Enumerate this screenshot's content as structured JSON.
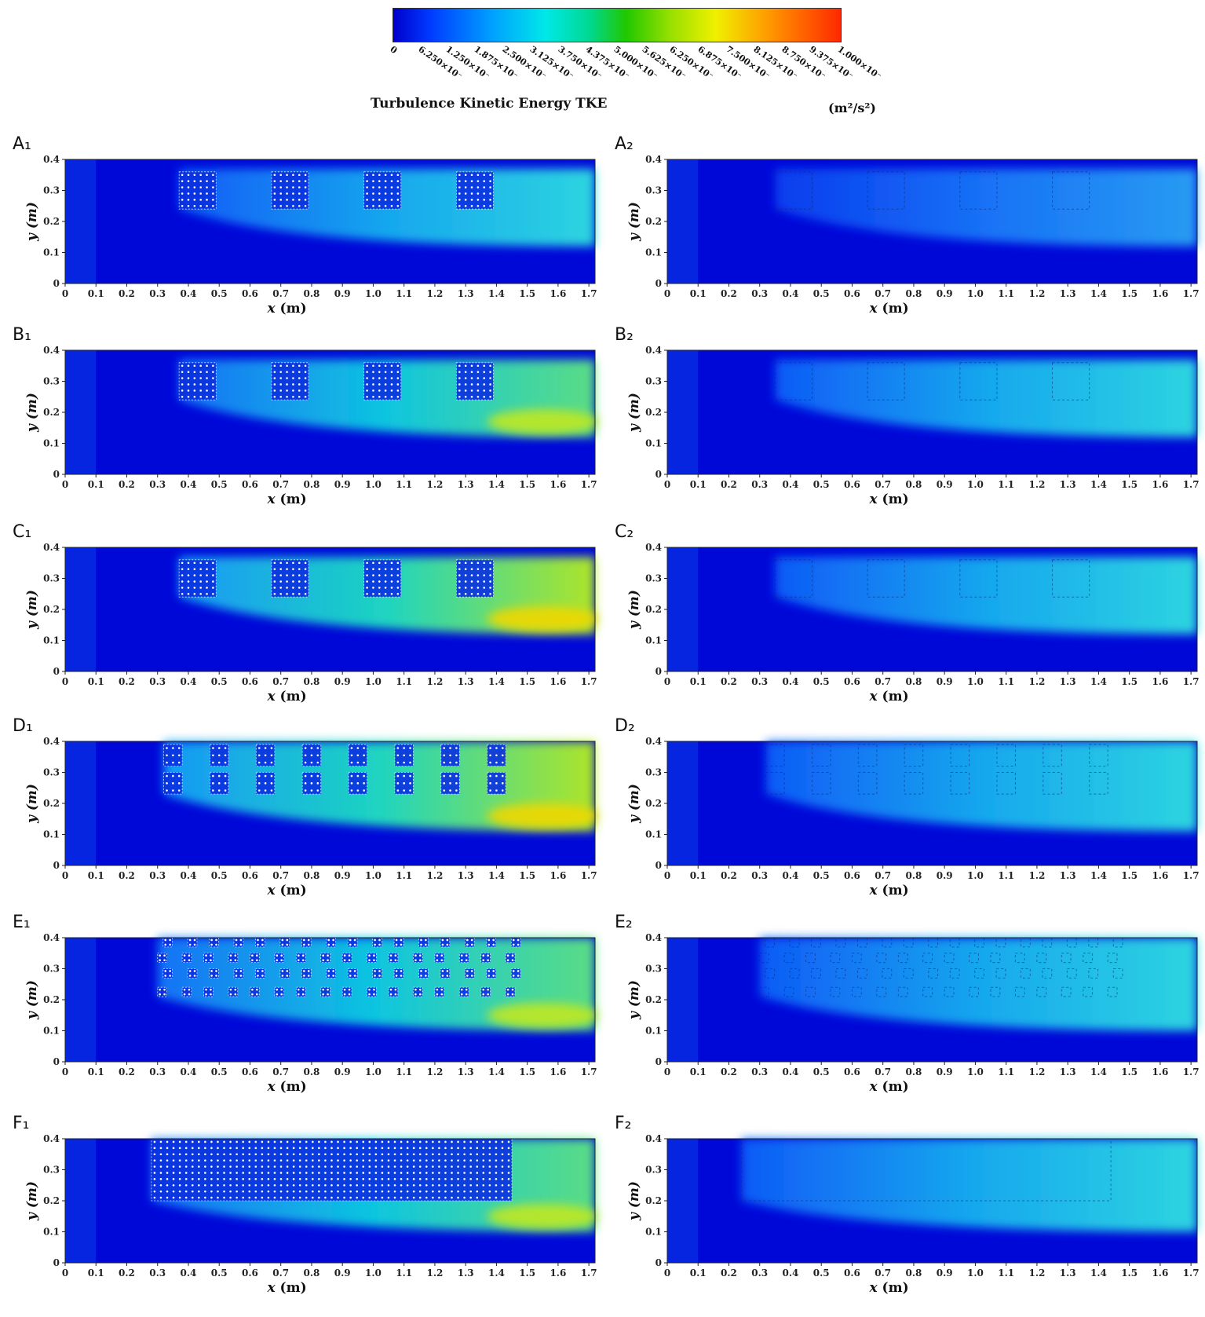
{
  "colorbar": {
    "label": "Turbulence Kinetic Energy TKE",
    "unit": "(m²/s²)",
    "ticks": [
      "0",
      "6.250×10⁻",
      "1.250×10⁻",
      "1.875×10⁻",
      "2.500×10⁻",
      "3.125×10⁻",
      "3.750×10⁻",
      "4.375×10⁻",
      "5.000×10⁻",
      "5.625×10⁻",
      "6.250×10⁻",
      "6.875×10⁻",
      "7.500×10⁻",
      "8.125×10⁻",
      "8.750×10⁻",
      "9.375×10⁻",
      "1.000×10⁻"
    ],
    "colors": [
      "#0000cc",
      "#0038ff",
      "#00a0ff",
      "#00e8e8",
      "#00d890",
      "#20c800",
      "#98e000",
      "#f0f000",
      "#ff9800",
      "#ff2800"
    ]
  },
  "axes": {
    "xlabel_var": "x",
    "xlabel_unit": "(m)",
    "ylabel": "y (m)",
    "xticks": [
      "0",
      "0.1",
      "0.2",
      "0.3",
      "0.4",
      "0.5",
      "0.6",
      "0.7",
      "0.8",
      "0.9",
      "1.0",
      "1.1",
      "1.2",
      "1.3",
      "1.4",
      "1.5",
      "1.6",
      "1.7"
    ],
    "yticks": [
      "0",
      "0.1",
      "0.2",
      "0.3",
      "0.4"
    ]
  },
  "chart_data": [
    {
      "type": "heatmap",
      "panel": "A₁",
      "xlim": [
        0,
        1.72
      ],
      "ylim": [
        0,
        0.4
      ],
      "patch_x": [
        0.37,
        0.67,
        0.97,
        1.27
      ],
      "patch_width": 0.12,
      "patch_y": [
        0.24,
        0.36
      ],
      "layout": "single row",
      "intensity": "medium",
      "colormap": "jet"
    },
    {
      "type": "heatmap",
      "panel": "A₂",
      "xlim": [
        0,
        1.72
      ],
      "ylim": [
        0,
        0.4
      ],
      "patch_x": [
        0.35,
        0.65,
        0.95,
        1.25
      ],
      "patch_width": 0.12,
      "patch_y": [
        0.24,
        0.36
      ],
      "layout": "single row",
      "intensity": "low",
      "colormap": "jet"
    },
    {
      "type": "heatmap",
      "panel": "B₁",
      "xlim": [
        0,
        1.72
      ],
      "ylim": [
        0,
        0.4
      ],
      "patch_x": [
        0.37,
        0.67,
        0.97,
        1.27
      ],
      "patch_width": 0.12,
      "patch_y": [
        0.24,
        0.36
      ],
      "layout": "single row",
      "intensity": "medium-high",
      "colormap": "jet"
    },
    {
      "type": "heatmap",
      "panel": "B₂",
      "xlim": [
        0,
        1.72
      ],
      "ylim": [
        0,
        0.4
      ],
      "patch_x": [
        0.35,
        0.65,
        0.95,
        1.25
      ],
      "patch_width": 0.12,
      "patch_y": [
        0.24,
        0.36
      ],
      "layout": "single row",
      "intensity": "medium",
      "colormap": "jet"
    },
    {
      "type": "heatmap",
      "panel": "C₁",
      "xlim": [
        0,
        1.72
      ],
      "ylim": [
        0,
        0.4
      ],
      "patch_x": [
        0.37,
        0.67,
        0.97,
        1.27
      ],
      "patch_width": 0.12,
      "patch_y": [
        0.24,
        0.36
      ],
      "layout": "single row",
      "intensity": "high",
      "colormap": "jet"
    },
    {
      "type": "heatmap",
      "panel": "C₂",
      "xlim": [
        0,
        1.72
      ],
      "ylim": [
        0,
        0.4
      ],
      "patch_x": [
        0.35,
        0.65,
        0.95,
        1.25
      ],
      "patch_width": 0.12,
      "patch_y": [
        0.24,
        0.36
      ],
      "layout": "single row",
      "intensity": "medium",
      "colormap": "jet"
    },
    {
      "type": "heatmap",
      "panel": "D₁",
      "xlim": [
        0,
        1.72
      ],
      "ylim": [
        0,
        0.4
      ],
      "patch_x": [
        0.32,
        0.47,
        0.62,
        0.77,
        0.92,
        1.07,
        1.22,
        1.37
      ],
      "patch_width": 0.06,
      "patch_y": [
        [
          0.23,
          0.3
        ],
        [
          0.32,
          0.39
        ]
      ],
      "layout": "two rows",
      "intensity": "high",
      "colormap": "jet"
    },
    {
      "type": "heatmap",
      "panel": "D₂",
      "xlim": [
        0,
        1.72
      ],
      "ylim": [
        0,
        0.4
      ],
      "patch_x": [
        0.32,
        0.47,
        0.62,
        0.77,
        0.92,
        1.07,
        1.22,
        1.37
      ],
      "patch_width": 0.06,
      "patch_y": [
        [
          0.23,
          0.3
        ],
        [
          0.32,
          0.39
        ]
      ],
      "layout": "two rows",
      "intensity": "medium",
      "colormap": "jet"
    },
    {
      "type": "heatmap",
      "panel": "E₁",
      "xlim": [
        0,
        1.72
      ],
      "ylim": [
        0,
        0.4
      ],
      "patch_x": [
        0.3,
        0.38,
        0.45,
        0.53,
        0.6,
        0.68,
        0.75,
        0.83,
        0.9,
        0.98,
        1.05,
        1.13,
        1.2,
        1.28,
        1.35,
        1.43
      ],
      "patch_width": 0.03,
      "patch_y": [
        [
          0.21,
          0.24
        ],
        [
          0.27,
          0.3
        ],
        [
          0.32,
          0.35
        ],
        [
          0.37,
          0.4
        ]
      ],
      "layout": "staggered grid",
      "intensity": "medium-high",
      "colormap": "jet"
    },
    {
      "type": "heatmap",
      "panel": "E₂",
      "xlim": [
        0,
        1.72
      ],
      "ylim": [
        0,
        0.4
      ],
      "patch_x": [
        0.3,
        0.38,
        0.45,
        0.53,
        0.6,
        0.68,
        0.75,
        0.83,
        0.9,
        0.98,
        1.05,
        1.13,
        1.2,
        1.28,
        1.35,
        1.43
      ],
      "patch_width": 0.03,
      "patch_y": [
        [
          0.21,
          0.24
        ],
        [
          0.27,
          0.3
        ],
        [
          0.32,
          0.35
        ],
        [
          0.37,
          0.4
        ]
      ],
      "layout": "staggered grid",
      "intensity": "medium",
      "colormap": "jet"
    },
    {
      "type": "heatmap",
      "panel": "F₁",
      "xlim": [
        0,
        1.72
      ],
      "ylim": [
        0,
        0.4
      ],
      "patch_x": [
        0.28
      ],
      "patch_width": 1.17,
      "patch_y": [
        0.2,
        0.4
      ],
      "layout": "dense array",
      "intensity": "medium-high",
      "colormap": "jet"
    },
    {
      "type": "heatmap",
      "panel": "F₂",
      "xlim": [
        0,
        1.72
      ],
      "ylim": [
        0,
        0.4
      ],
      "patch_x": [
        0.24
      ],
      "patch_width": 1.2,
      "patch_y": [
        0.2,
        0.4
      ],
      "layout": "dense array",
      "intensity": "medium",
      "colormap": "jet"
    }
  ]
}
